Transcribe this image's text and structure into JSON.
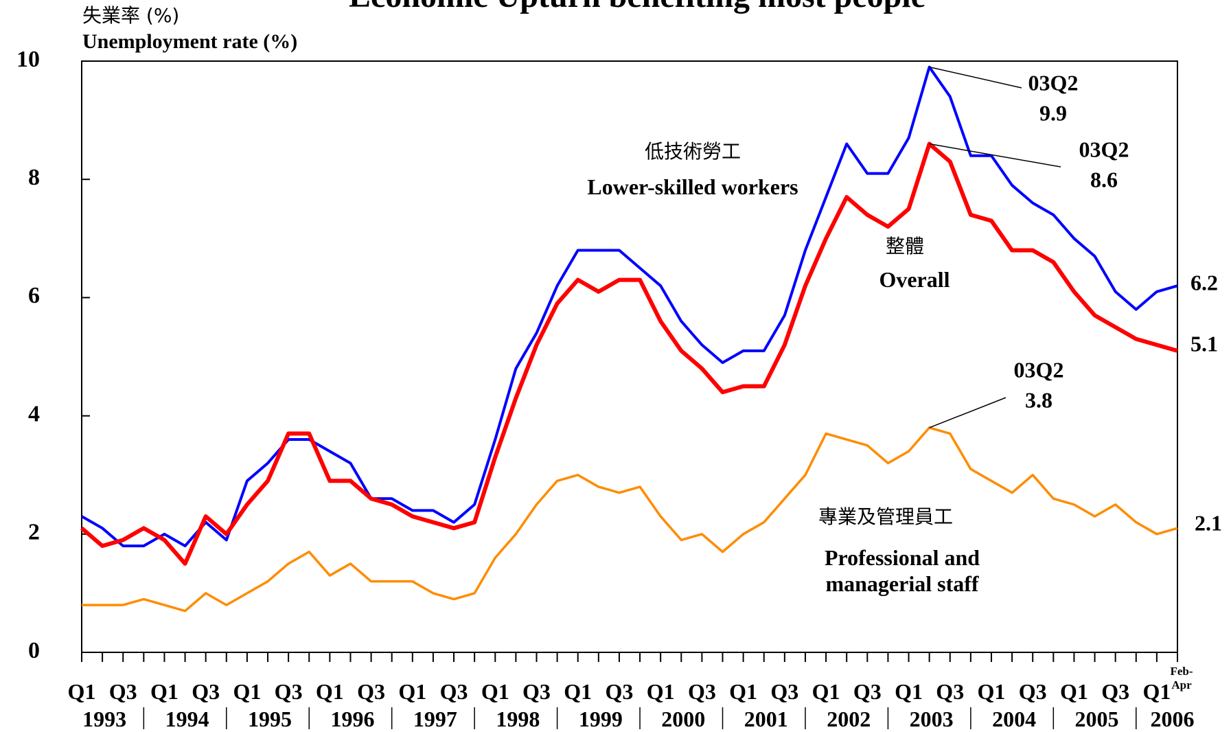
{
  "chart_data": {
    "type": "line",
    "title": "Economic Upturn benefiting most people",
    "y_label_zh": "失業率 (%)",
    "y_label": "Unemployment rate (%)",
    "categories": [
      "Q1",
      null,
      "Q3",
      null,
      "Q1",
      null,
      "Q3",
      null,
      "Q1",
      null,
      "Q3",
      null,
      "Q1",
      null,
      "Q3",
      null,
      "Q1",
      null,
      "Q3",
      null,
      "Q1",
      null,
      "Q3",
      null,
      "Q1",
      null,
      "Q3",
      null,
      "Q1",
      null,
      "Q3",
      null,
      "Q1",
      null,
      "Q3",
      null,
      "Q1",
      null,
      "Q3",
      null,
      "Q1",
      null,
      "Q3",
      null,
      "Q1",
      null,
      "Q3",
      null,
      "Q1",
      null,
      "Q3",
      null,
      "Q1",
      "Feb-Apr"
    ],
    "years": [
      "1993",
      "1994",
      "1995",
      "1996",
      "1997",
      "1998",
      "1999",
      "2000",
      "2001",
      "2002",
      "2003",
      "2004",
      "2005",
      "2006"
    ],
    "ylim": [
      0,
      10
    ],
    "yticks": [
      0,
      2,
      4,
      6,
      8,
      10
    ],
    "series": [
      {
        "name": "Lower-skilled workers",
        "name_zh": "低技術勞工",
        "color": "#0000ff",
        "annotation": "03Q2",
        "values": [
          2.3,
          2.1,
          1.8,
          1.8,
          2.0,
          1.8,
          2.2,
          1.9,
          2.9,
          3.2,
          3.6,
          3.6,
          3.4,
          3.2,
          2.6,
          2.6,
          2.4,
          2.4,
          2.2,
          2.5,
          3.6,
          4.8,
          5.4,
          6.2,
          6.8,
          6.8,
          6.8,
          6.5,
          6.2,
          5.6,
          5.2,
          4.9,
          5.1,
          5.1,
          5.7,
          6.8,
          7.7,
          8.6,
          8.1,
          8.1,
          8.7,
          9.9,
          9.4,
          8.4,
          8.4,
          7.9,
          7.6,
          7.4,
          7.0,
          6.7,
          6.1,
          5.8,
          6.1,
          6.2
        ]
      },
      {
        "name": "Overall",
        "name_zh": "整體",
        "color": "#ff0000",
        "annotation": "03Q2",
        "values": [
          2.1,
          1.8,
          1.9,
          2.1,
          1.9,
          1.5,
          2.3,
          2.0,
          2.5,
          2.9,
          3.7,
          3.7,
          2.9,
          2.9,
          2.6,
          2.5,
          2.3,
          2.2,
          2.1,
          2.2,
          3.3,
          4.3,
          5.2,
          5.9,
          6.3,
          6.1,
          6.3,
          6.3,
          5.6,
          5.1,
          4.8,
          4.4,
          4.5,
          4.5,
          5.2,
          6.2,
          7.0,
          7.7,
          7.4,
          7.2,
          7.5,
          8.6,
          8.3,
          7.4,
          7.3,
          6.8,
          6.8,
          6.6,
          6.1,
          5.7,
          5.5,
          5.3,
          5.2,
          5.1
        ]
      },
      {
        "name": "Professional and managerial staff",
        "name_zh": "專業及管理員工",
        "color": "#ff8c00",
        "annotation": "03Q2",
        "values": [
          0.8,
          0.8,
          0.8,
          0.9,
          0.8,
          0.7,
          1.0,
          0.8,
          1.0,
          1.2,
          1.5,
          1.7,
          1.3,
          1.5,
          1.2,
          1.2,
          1.2,
          1.0,
          0.9,
          1.0,
          1.6,
          2.0,
          2.5,
          2.9,
          3.0,
          2.8,
          2.7,
          2.8,
          2.3,
          1.9,
          2.0,
          1.7,
          2.0,
          2.2,
          2.6,
          3.0,
          3.7,
          3.6,
          3.5,
          3.2,
          3.4,
          3.8,
          3.7,
          3.1,
          2.9,
          2.7,
          3.0,
          2.6,
          2.5,
          2.3,
          2.5,
          2.2,
          2.0,
          2.1
        ]
      }
    ]
  }
}
